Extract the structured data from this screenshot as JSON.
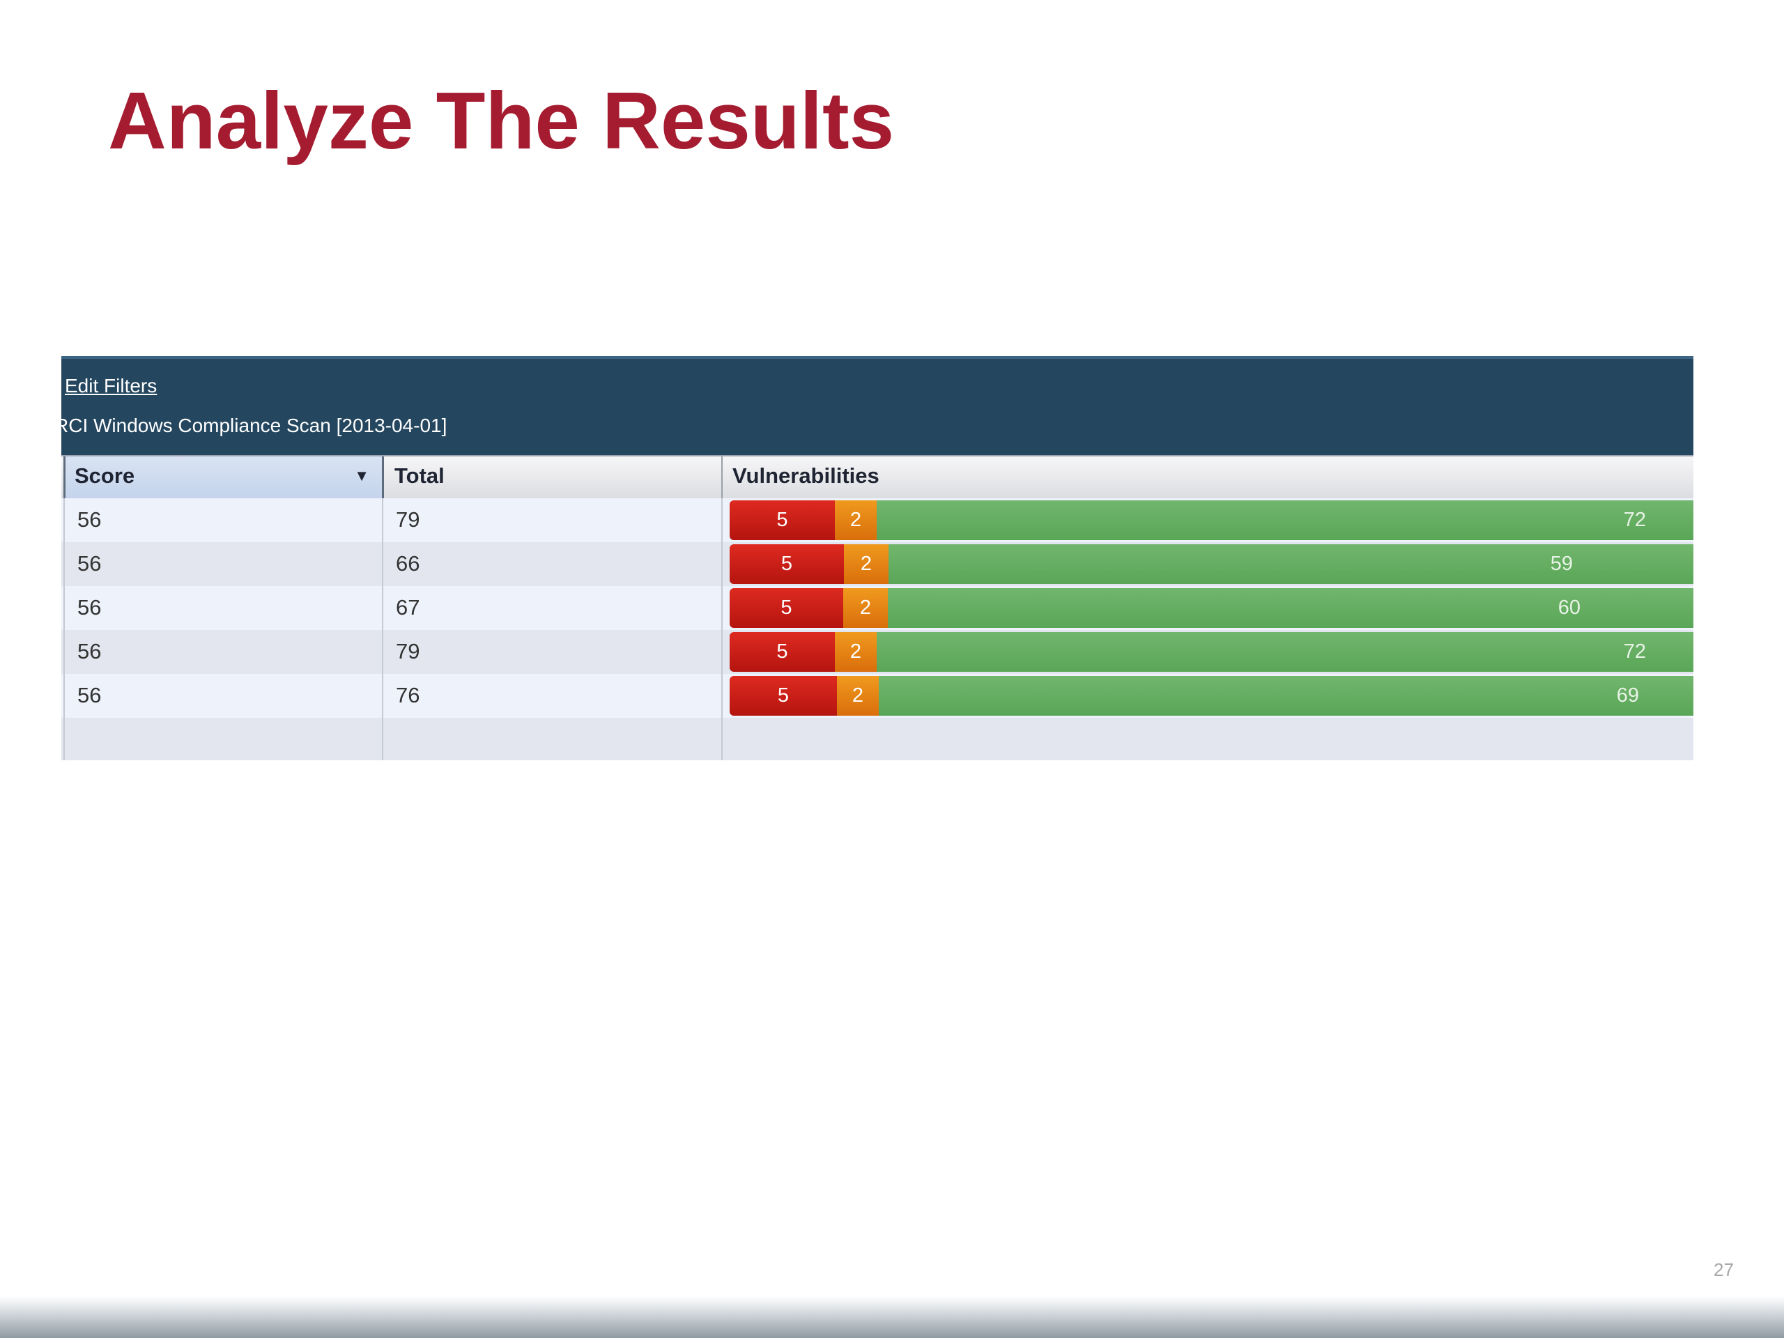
{
  "slide": {
    "title": "Analyze The Results",
    "page_number": "27"
  },
  "panel": {
    "edit_filters_label": "Edit Filters",
    "scan_name": "RCI Windows Compliance Scan [2013-04-01]"
  },
  "table": {
    "headers": {
      "score": "Score",
      "total": "Total",
      "vulnerabilities": "Vulnerabilities"
    },
    "sort_indicator": "▼",
    "rows": [
      {
        "score": "56",
        "total": "79",
        "critical": "5",
        "high": "2",
        "passed": "72"
      },
      {
        "score": "56",
        "total": "66",
        "critical": "5",
        "high": "2",
        "passed": "59"
      },
      {
        "score": "56",
        "total": "67",
        "critical": "5",
        "high": "2",
        "passed": "60"
      },
      {
        "score": "56",
        "total": "79",
        "critical": "5",
        "high": "2",
        "passed": "72"
      },
      {
        "score": "56",
        "total": "76",
        "critical": "5",
        "high": "2",
        "passed": "69"
      }
    ]
  },
  "colors": {
    "title": "#a51c30",
    "header_bg": "#24465f",
    "critical": "#c81a14",
    "high": "#e8830f",
    "passed": "#64ae60"
  }
}
